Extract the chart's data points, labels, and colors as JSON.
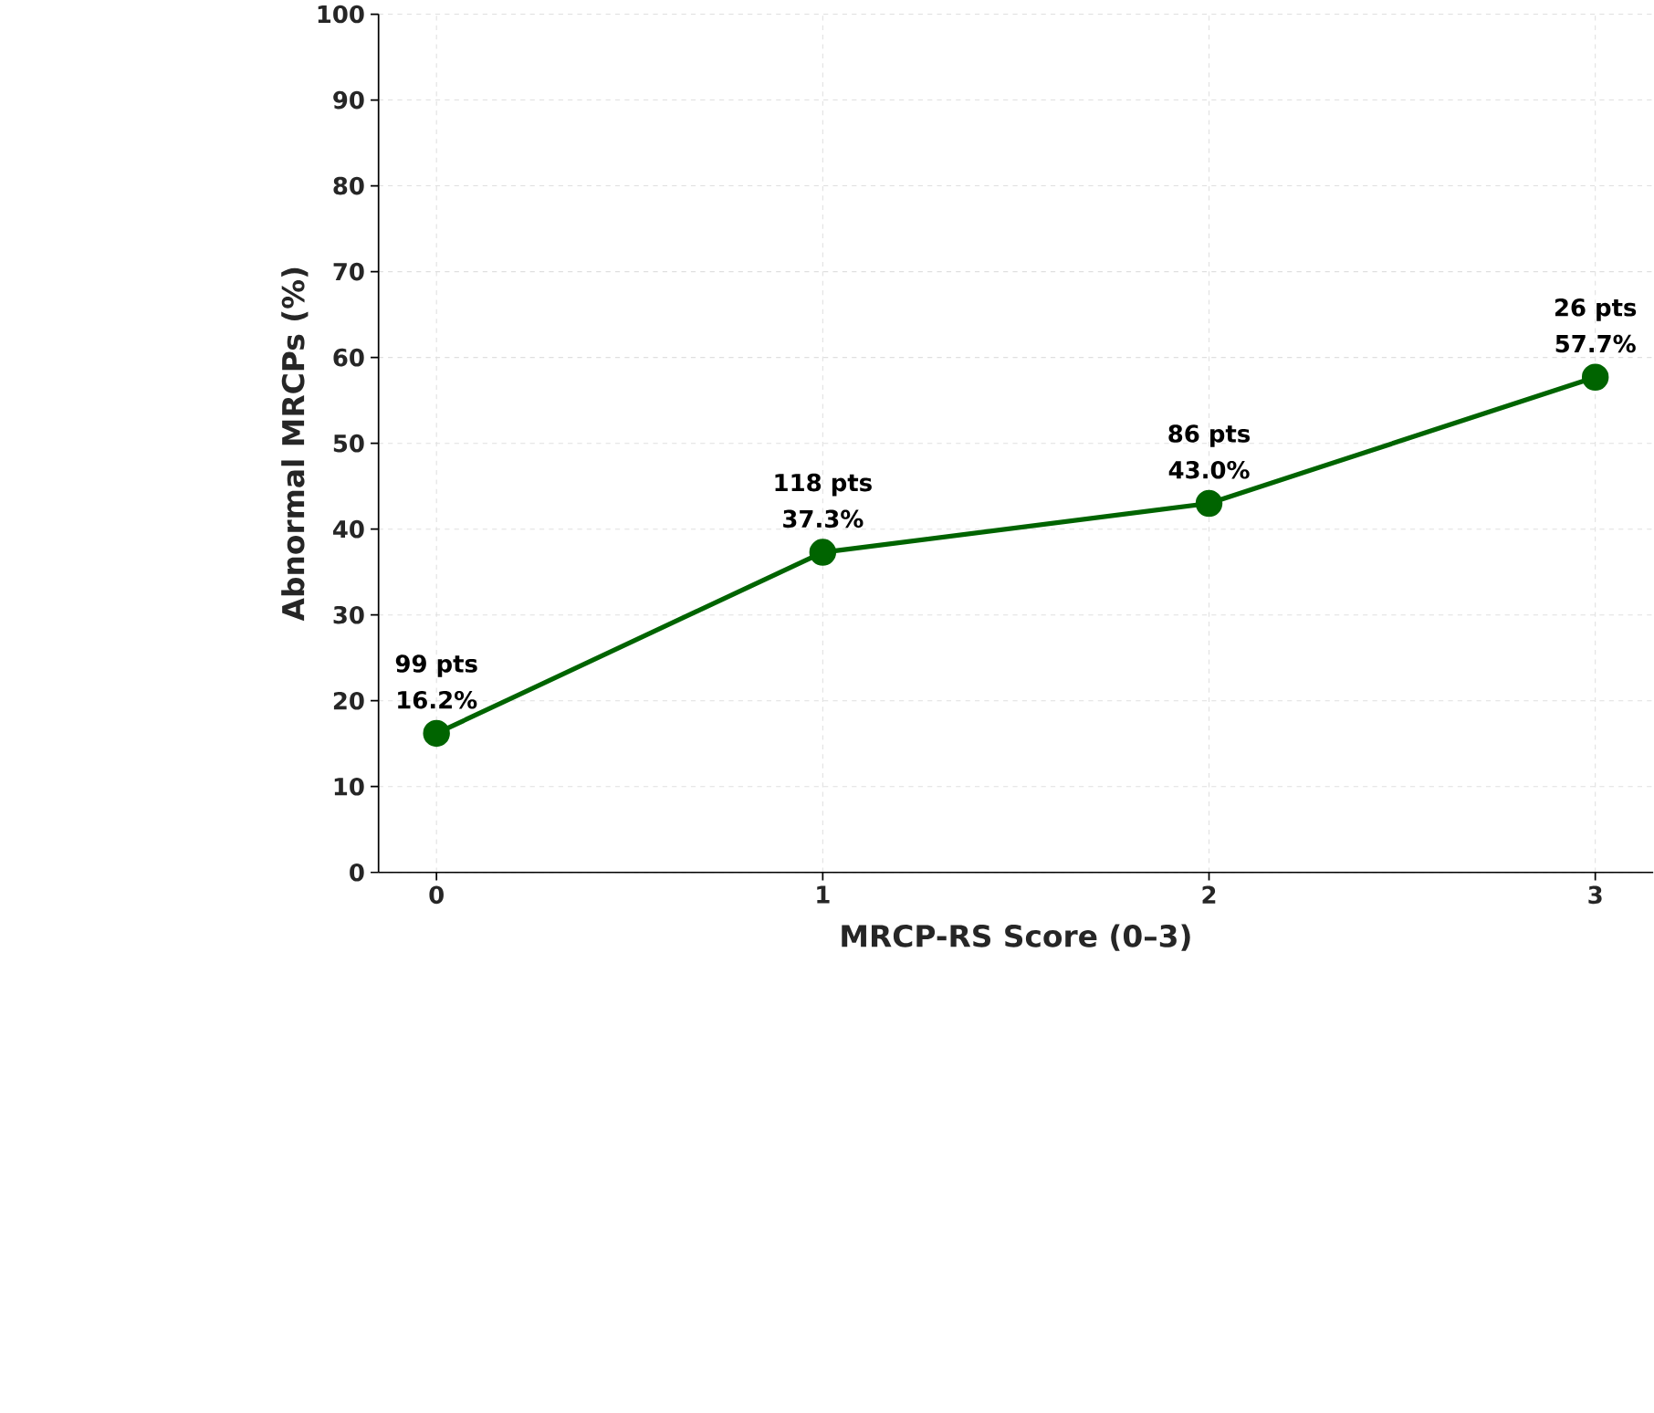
{
  "chart_data": {
    "type": "line",
    "xlabel": "MRCP-RS Score (0–3)",
    "ylabel": "Abnormal MRCPs (%)",
    "x": [
      0,
      1,
      2,
      3
    ],
    "series": [
      {
        "color": "#006400",
        "values": [
          16.2,
          37.3,
          43.0,
          57.7
        ],
        "value_labels": [
          "16.2%",
          "37.3%",
          "43.0%",
          "57.7%"
        ]
      }
    ],
    "annotations": [
      {
        "text": "99 pts",
        "x": 0,
        "y": 16.2
      },
      {
        "text": "118 pts",
        "x": 1,
        "y": 37.3
      },
      {
        "text": "86 pts",
        "x": 2,
        "y": 43.0
      },
      {
        "text": "26 pts",
        "x": 3,
        "y": 57.7
      }
    ],
    "xlim": [
      -0.15,
      3.15
    ],
    "xticks": [
      0,
      1,
      2,
      3
    ],
    "ylim": [
      0,
      100
    ],
    "yticks": [
      0,
      10,
      20,
      30,
      40,
      50,
      60,
      70,
      80,
      90,
      100
    ],
    "grid": true,
    "marker": "circle",
    "line_style": "solid"
  }
}
